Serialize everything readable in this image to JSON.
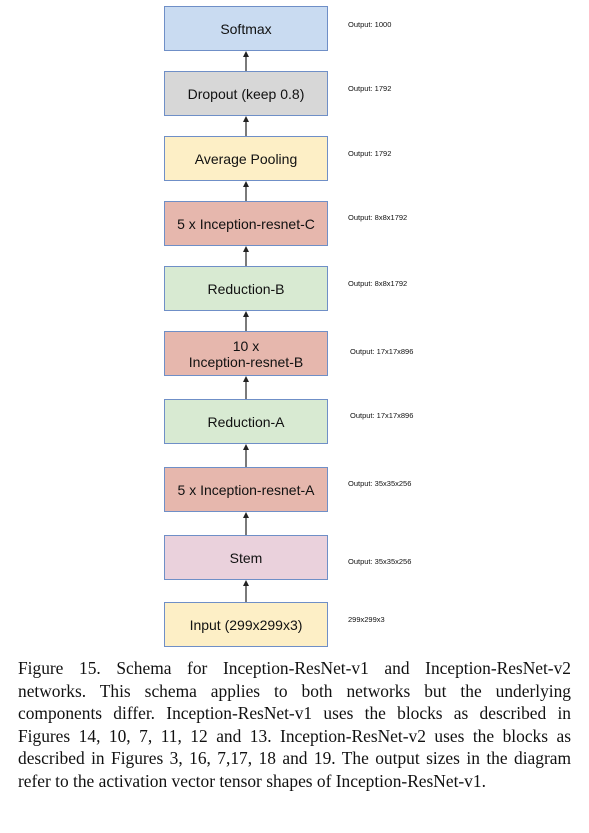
{
  "blocks": [
    {
      "label": "Softmax",
      "output": "Output: 1000",
      "color": "#c9dbf1"
    },
    {
      "label": "Dropout (keep 0.8)",
      "output": "Output: 1792",
      "color": "#d7d7d7"
    },
    {
      "label": "Average Pooling",
      "output": "Output: 1792",
      "color": "#fdefc6"
    },
    {
      "label": "5 x Inception-resnet-C",
      "output": "Output: 8x8x1792",
      "color": "#e6b7ad"
    },
    {
      "label": "Reduction-B",
      "output": "Output: 8x8x1792",
      "color": "#d8ead2"
    },
    {
      "label": "10 x\nInception-resnet-B",
      "output": "Output: 17x17x896",
      "color": "#e6b7ad"
    },
    {
      "label": "Reduction-A",
      "output": "Output: 17x17x896",
      "color": "#d8ead2"
    },
    {
      "label": "5 x Inception-resnet-A",
      "output": "Output: 35x35x256",
      "color": "#e6b7ad"
    },
    {
      "label": "Stem",
      "output": "Output: 35x35x256",
      "color": "#ead1dc"
    },
    {
      "label": "Input (299x299x3)",
      "output": "299x299x3",
      "color": "#fdefc6"
    }
  ],
  "caption": "Figure 15. Schema for Inception-ResNet-v1 and Inception-ResNet-v2 networks. This schema applies to both networks but the underlying components differ. Inception-ResNet-v1 uses the blocks as described in Figures 14, 10, 7, 11, 12 and 13. Inception-ResNet-v2 uses the blocks as described in Figures 3, 16, 7,17, 18 and 19. The output sizes in the diagram refer to the activation vector tensor shapes of Inception-ResNet-v1."
}
